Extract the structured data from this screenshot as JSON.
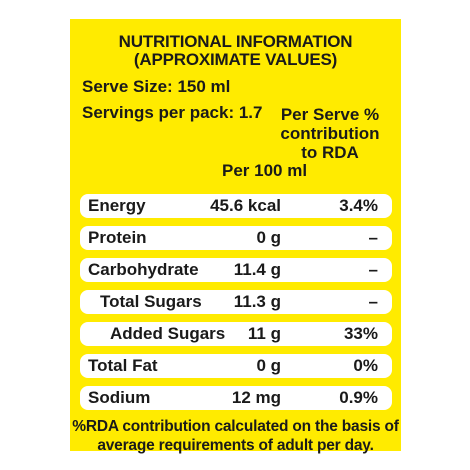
{
  "title_line1": "NUTRITIONAL INFORMATION",
  "title_line2": "(APPROXIMATE VALUES)",
  "serve_size": "Serve Size: 150 ml",
  "servings_per_pack": "Servings per pack: 1.7",
  "header": {
    "per_serve_line1": "Per Serve %",
    "per_serve_line2": "contribution",
    "per_serve_line3": "to RDA",
    "per_100ml": "Per 100 ml"
  },
  "rows": [
    {
      "name": "Energy",
      "per100": "45.6 kcal",
      "rda": "3.4%"
    },
    {
      "name": "Protein",
      "per100": "0 g",
      "rda": "–"
    },
    {
      "name": "Carbohydrate",
      "per100": "11.4 g",
      "rda": "–"
    },
    {
      "name": "Total Sugars",
      "per100": "11.3 g",
      "rda": "–"
    },
    {
      "name": "Added Sugars",
      "per100": "11 g",
      "rda": "33%"
    },
    {
      "name": "Total Fat",
      "per100": "0 g",
      "rda": "0%"
    },
    {
      "name": "Sodium",
      "per100": "12 mg",
      "rda": "0.9%"
    }
  ],
  "footnote_line1": "%RDA contribution calculated on the basis of",
  "footnote_line2": "average requirements of adult per day.",
  "colors": {
    "panel": "#ffeb00",
    "row": "#ffffff",
    "text": "#1a1a1a"
  }
}
